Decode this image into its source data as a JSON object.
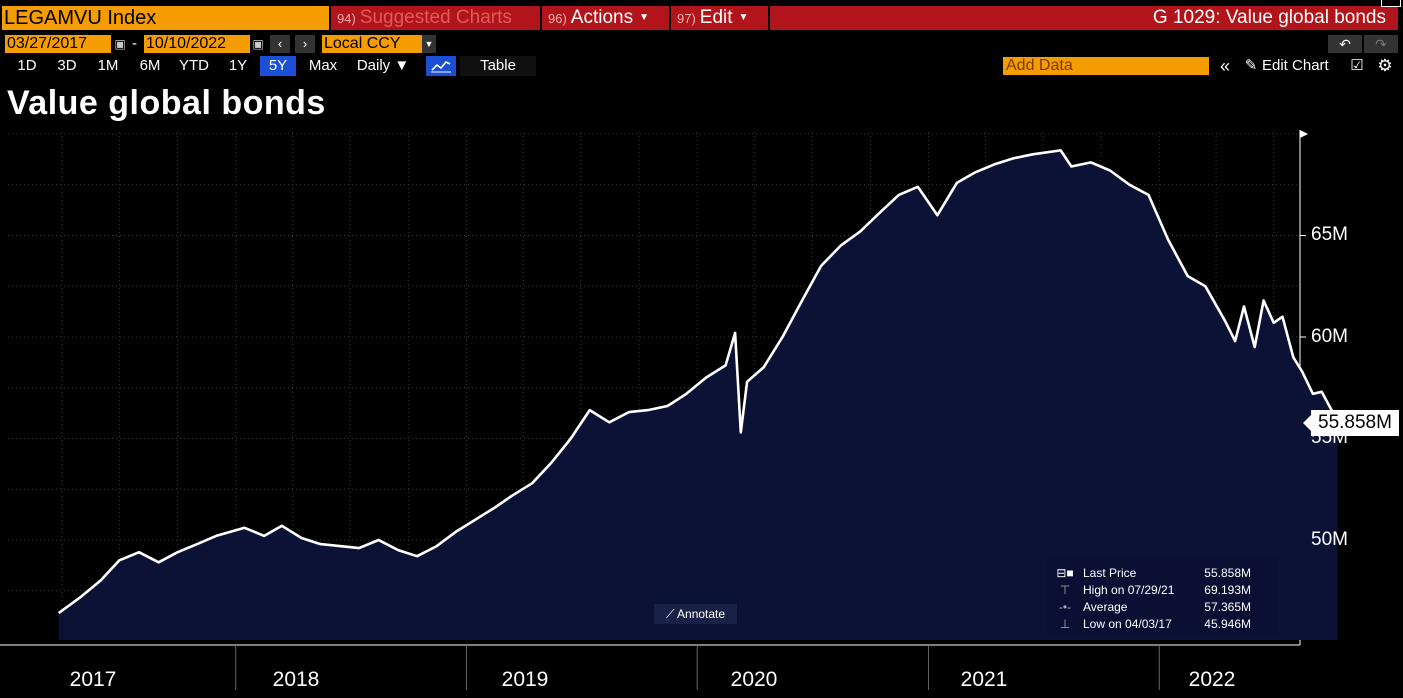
{
  "header": {
    "ticker": "LEGAMVU Index",
    "suggested_num": "94)",
    "suggested_label": "Suggested Charts",
    "actions_num": "96)",
    "actions_label": "Actions",
    "edit_num": "97)",
    "edit_label": "Edit",
    "window_title": "G 1029: Value global bonds"
  },
  "dates": {
    "start": "03/27/2017",
    "separator": "-",
    "end": "10/10/2022",
    "currency": "Local CCY"
  },
  "ranges": [
    "1D",
    "3D",
    "1M",
    "6M",
    "YTD",
    "1Y",
    "5Y",
    "Max",
    "Daily ▼"
  ],
  "selected_range": "5Y",
  "toolbar": {
    "table_label": "Table",
    "add_data_placeholder": "Add Data",
    "edit_chart_label": "Edit Chart"
  },
  "icons": [
    "calendar-icon",
    "chevron-left-icon",
    "chevron-right-icon",
    "dropdown-icon",
    "undo-icon",
    "redo-icon",
    "line-chart-icon",
    "collapse-icon",
    "pencil-icon",
    "edit-table-icon",
    "gear-icon"
  ],
  "colors": {
    "accent": "#f59c00",
    "menu_red": "#b1151b",
    "area_fill": "#0c1236",
    "line": "#ffffff"
  },
  "chart_data": {
    "type": "area",
    "title": "Value global bonds",
    "x_labels": [
      "2017",
      "2018",
      "2019",
      "2020",
      "2021",
      "2022"
    ],
    "y_ticks": [
      "50M",
      "55M",
      "60M",
      "65M"
    ],
    "ylim": [
      45,
      70
    ],
    "last_value_label": "55.858M",
    "grid": true,
    "legend_position": "bottom-right",
    "series": [
      {
        "x": [
          "2017-03-27",
          "2017-05-01",
          "2017-06-01",
          "2017-07-01",
          "2017-08-01",
          "2017-09-01",
          "2017-10-01",
          "2017-11-01",
          "2017-12-01",
          "2018-01-15",
          "2018-02-15",
          "2018-03-15",
          "2018-04-15",
          "2018-05-15",
          "2018-06-15",
          "2018-07-15",
          "2018-08-15",
          "2018-09-15",
          "2018-10-15",
          "2018-11-15",
          "2018-12-15",
          "2019-01-15",
          "2019-02-15",
          "2019-03-15",
          "2019-04-15",
          "2019-05-15",
          "2019-06-15",
          "2019-07-15",
          "2019-08-15",
          "2019-09-15",
          "2019-10-15",
          "2019-11-15",
          "2019-12-15",
          "2020-01-15",
          "2020-02-15",
          "2020-03-01",
          "2020-03-10",
          "2020-03-20",
          "2020-04-15",
          "2020-05-15",
          "2020-06-15",
          "2020-07-15",
          "2020-08-15",
          "2020-09-15",
          "2020-10-15",
          "2020-11-15",
          "2020-12-15",
          "2021-01-15",
          "2021-02-15",
          "2021-03-15",
          "2021-04-15",
          "2021-05-15",
          "2021-06-15",
          "2021-07-29",
          "2021-08-15",
          "2021-09-15",
          "2021-10-15",
          "2021-11-15",
          "2021-12-15",
          "2022-01-15",
          "2022-02-15",
          "2022-03-15",
          "2022-04-15",
          "2022-05-01",
          "2022-05-15",
          "2022-06-01",
          "2022-06-15",
          "2022-07-01",
          "2022-07-15",
          "2022-08-01",
          "2022-08-15",
          "2022-09-01",
          "2022-09-15",
          "2022-10-10"
        ],
        "values": [
          46.4,
          47.2,
          48.0,
          49.0,
          49.4,
          48.9,
          49.4,
          49.8,
          50.2,
          50.6,
          50.2,
          50.7,
          50.1,
          49.8,
          49.7,
          49.6,
          50.0,
          49.5,
          49.2,
          49.7,
          50.4,
          51.0,
          51.6,
          52.2,
          52.8,
          53.8,
          55.0,
          56.4,
          55.8,
          56.3,
          56.4,
          56.6,
          57.2,
          58.0,
          58.6,
          60.2,
          55.3,
          57.8,
          58.5,
          60.0,
          61.8,
          63.5,
          64.5,
          65.2,
          66.1,
          67.0,
          67.4,
          66.0,
          67.6,
          68.1,
          68.5,
          68.8,
          69.0,
          69.193,
          68.4,
          68.6,
          68.2,
          67.5,
          67.0,
          64.8,
          63.0,
          62.5,
          60.8,
          59.8,
          61.5,
          59.5,
          61.8,
          60.7,
          61.0,
          59.0,
          58.3,
          57.2,
          57.3,
          55.858
        ]
      }
    ]
  },
  "legend": {
    "rows": [
      {
        "label": "Last Price",
        "value": "55.858M"
      },
      {
        "label": "High on 07/29/21",
        "value": "69.193M"
      },
      {
        "label": "Average",
        "value": "57.365M"
      },
      {
        "label": "Low on 04/03/17",
        "value": "45.946M"
      }
    ]
  },
  "annotate_label": "Annotate"
}
